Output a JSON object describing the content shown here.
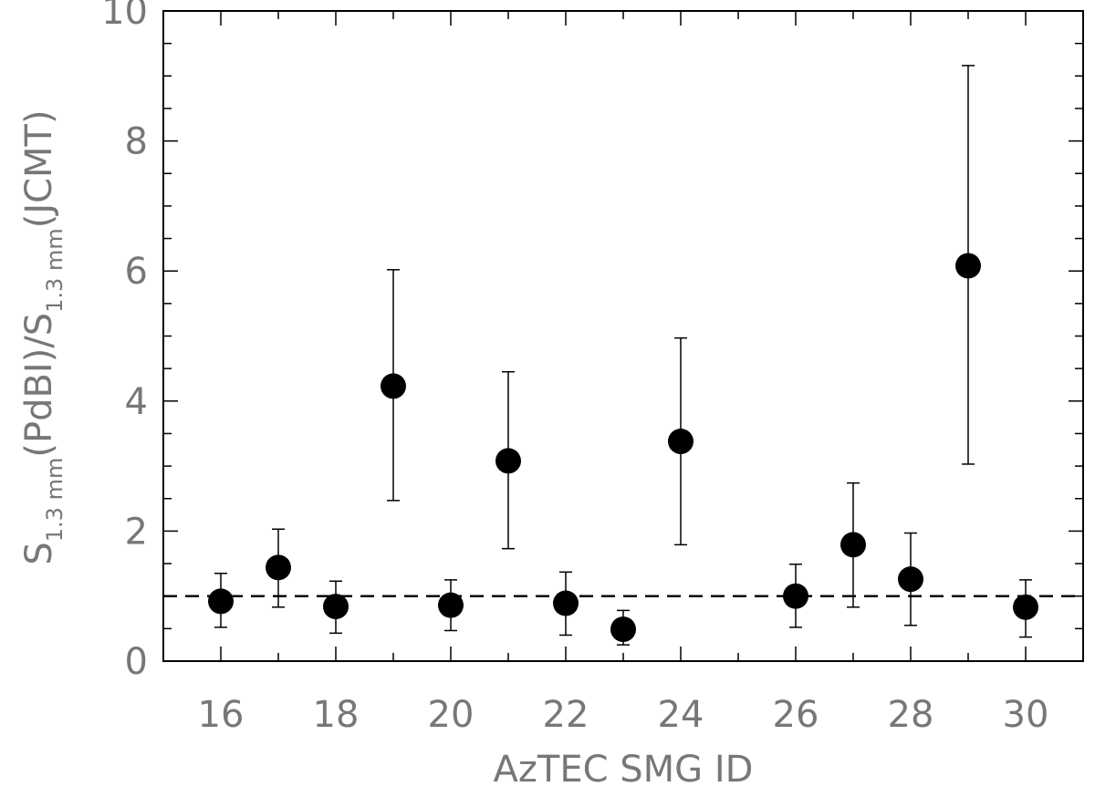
{
  "chart_data": {
    "type": "scatter",
    "xlabel": "AzTEC SMG ID",
    "ylabel": {
      "segments": [
        {
          "text": "S",
          "sub": false
        },
        {
          "text": "1.3 mm",
          "sub": true
        },
        {
          "text": "(PdBI)/S",
          "sub": false
        },
        {
          "text": "1.3 mm",
          "sub": true
        },
        {
          "text": "(JCMT)",
          "sub": false
        }
      ]
    },
    "xlim": [
      15,
      31
    ],
    "ylim": [
      0,
      10
    ],
    "xticks": [
      16,
      18,
      20,
      22,
      24,
      26,
      28,
      30
    ],
    "yticks": [
      0,
      2,
      4,
      6,
      8,
      10
    ],
    "points": [
      {
        "x": 16,
        "y": 0.92,
        "ylo": 0.52,
        "yhi": 1.35
      },
      {
        "x": 17,
        "y": 1.44,
        "ylo": 0.83,
        "yhi": 2.03
      },
      {
        "x": 18,
        "y": 0.84,
        "ylo": 0.43,
        "yhi": 1.23
      },
      {
        "x": 19,
        "y": 4.23,
        "ylo": 2.47,
        "yhi": 6.02
      },
      {
        "x": 20,
        "y": 0.86,
        "ylo": 0.47,
        "yhi": 1.25
      },
      {
        "x": 21,
        "y": 3.08,
        "ylo": 1.73,
        "yhi": 4.45
      },
      {
        "x": 22,
        "y": 0.89,
        "ylo": 0.4,
        "yhi": 1.37
      },
      {
        "x": 23,
        "y": 0.49,
        "ylo": 0.25,
        "yhi": 0.78
      },
      {
        "x": 24,
        "y": 3.38,
        "ylo": 1.79,
        "yhi": 4.97
      },
      {
        "x": 26,
        "y": 1.0,
        "ylo": 0.52,
        "yhi": 1.49
      },
      {
        "x": 27,
        "y": 1.79,
        "ylo": 0.83,
        "yhi": 2.74
      },
      {
        "x": 28,
        "y": 1.26,
        "ylo": 0.55,
        "yhi": 1.97
      },
      {
        "x": 29,
        "y": 6.08,
        "ylo": 3.03,
        "yhi": 9.16
      },
      {
        "x": 30,
        "y": 0.83,
        "ylo": 0.37,
        "yhi": 1.25
      }
    ],
    "reference_line": {
      "y": 1.0,
      "style": "dashed"
    },
    "grid": false,
    "marker": "filled-circle",
    "colors": {
      "marker": "#000000",
      "axis": "#000000",
      "text": "#777777"
    }
  }
}
